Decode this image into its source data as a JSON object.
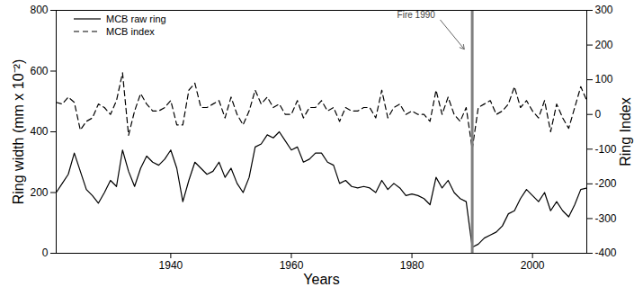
{
  "chart_data": {
    "type": "line",
    "x_label": "Years",
    "y_label": "Ring width (mm x 10⁻²)",
    "y2_label": "Ring Index",
    "x": [
      1921,
      1922,
      1923,
      1924,
      1925,
      1926,
      1927,
      1928,
      1929,
      1930,
      1931,
      1932,
      1933,
      1934,
      1935,
      1936,
      1937,
      1938,
      1939,
      1940,
      1941,
      1942,
      1943,
      1944,
      1945,
      1946,
      1947,
      1948,
      1949,
      1950,
      1951,
      1952,
      1953,
      1954,
      1955,
      1956,
      1957,
      1958,
      1959,
      1960,
      1961,
      1962,
      1963,
      1964,
      1965,
      1966,
      1967,
      1968,
      1969,
      1970,
      1971,
      1972,
      1973,
      1974,
      1975,
      1976,
      1977,
      1978,
      1979,
      1980,
      1981,
      1982,
      1983,
      1984,
      1985,
      1986,
      1987,
      1988,
      1989,
      1990,
      1991,
      1992,
      1993,
      1994,
      1995,
      1996,
      1997,
      1998,
      1999,
      2000,
      2001,
      2002,
      2003,
      2004,
      2005,
      2006,
      2007,
      2008,
      2009
    ],
    "series": [
      {
        "name": "MCB raw ring",
        "color": "#000000",
        "line_style": "solid",
        "axis": "y",
        "values": [
          200,
          230,
          260,
          330,
          270,
          210,
          190,
          165,
          200,
          240,
          220,
          340,
          270,
          220,
          280,
          320,
          300,
          290,
          310,
          340,
          280,
          170,
          240,
          300,
          280,
          260,
          270,
          300,
          250,
          280,
          230,
          200,
          250,
          350,
          360,
          390,
          380,
          400,
          370,
          340,
          350,
          300,
          310,
          330,
          330,
          300,
          290,
          230,
          240,
          220,
          215,
          220,
          215,
          200,
          240,
          210,
          230,
          215,
          190,
          195,
          190,
          180,
          160,
          250,
          215,
          240,
          200,
          180,
          170,
          20,
          30,
          50,
          60,
          70,
          90,
          130,
          140,
          180,
          210,
          190,
          170,
          200,
          140,
          170,
          140,
          120,
          160,
          210,
          215
        ]
      },
      {
        "name": "MCB index",
        "color": "#000000",
        "line_style": "dashed",
        "axis": "y2",
        "values": [
          35,
          30,
          50,
          35,
          -45,
          -20,
          -10,
          30,
          20,
          0,
          40,
          120,
          -60,
          10,
          60,
          30,
          10,
          10,
          20,
          40,
          -30,
          -30,
          70,
          90,
          20,
          20,
          30,
          40,
          -10,
          50,
          0,
          -30,
          10,
          70,
          30,
          50,
          20,
          30,
          0,
          0,
          40,
          -10,
          20,
          20,
          40,
          10,
          20,
          -20,
          20,
          10,
          10,
          20,
          20,
          -10,
          70,
          -10,
          20,
          30,
          0,
          10,
          0,
          0,
          -20,
          70,
          0,
          50,
          0,
          -20,
          20,
          -100,
          20,
          30,
          40,
          0,
          10,
          30,
          80,
          20,
          40,
          10,
          -10,
          40,
          -50,
          30,
          -10,
          -40,
          20,
          80,
          40
        ]
      }
    ],
    "xlim": [
      1921,
      2009
    ],
    "xticks": [
      1940,
      1960,
      1980,
      2000
    ],
    "ylim": [
      0,
      800
    ],
    "yticks": [
      0,
      200,
      400,
      600,
      800
    ],
    "y2lim": [
      -400,
      300
    ],
    "y2ticks": [
      -400,
      -300,
      -200,
      -100,
      0,
      100,
      200,
      300
    ],
    "legend": "top-left",
    "annotations": [
      {
        "text": "Fire 1990",
        "x": 1990
      }
    ]
  }
}
